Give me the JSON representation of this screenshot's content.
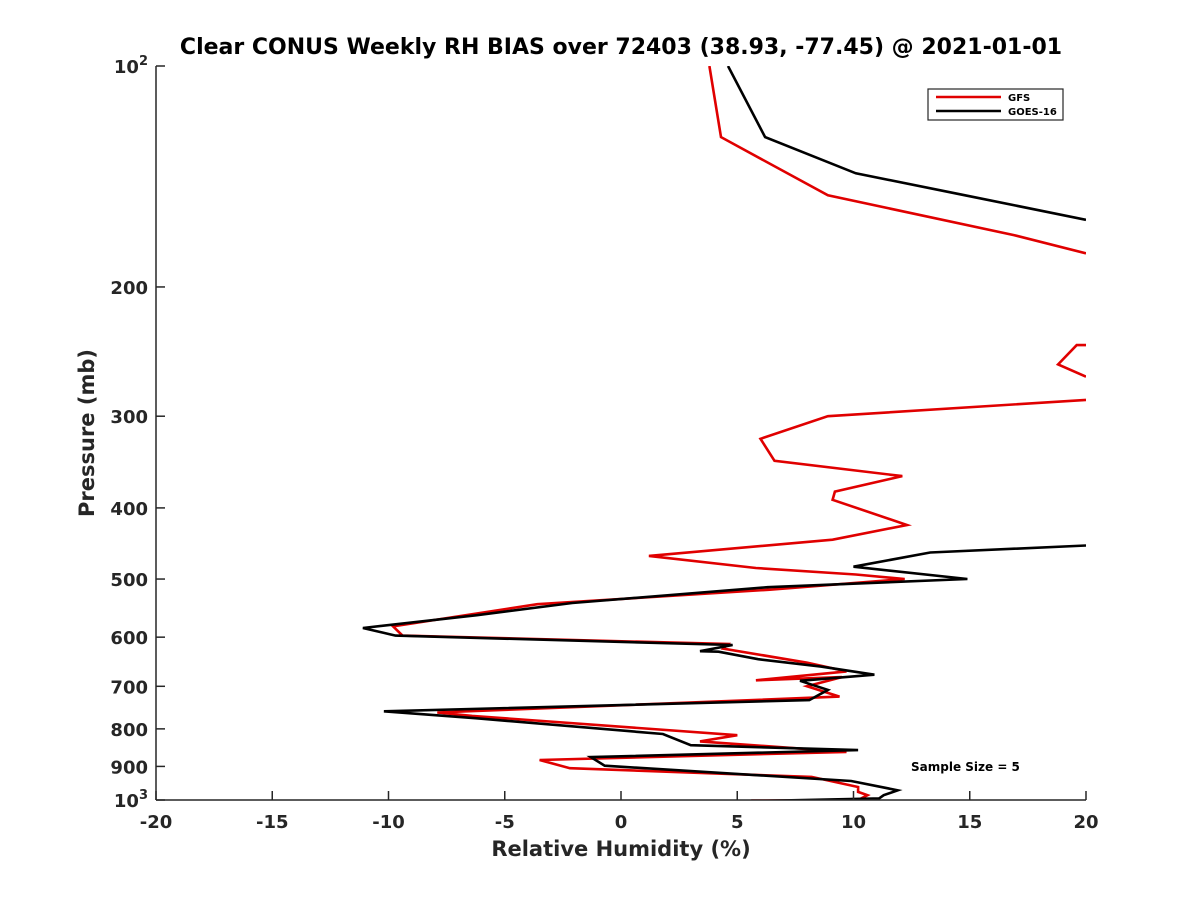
{
  "chart_data": {
    "type": "line",
    "title": "Clear CONUS Weekly RH BIAS over 72403 (38.93, -77.45) @ 2021-01-01",
    "xlabel": "Relative Humidity (%)",
    "ylabel": "Pressure (mb)",
    "xlim": [
      -20,
      20
    ],
    "ylim": [
      100,
      1000
    ],
    "y_scale": "log",
    "y_reversed": true,
    "grid": false,
    "legend_position": "top-right",
    "x_ticks": [
      "-20",
      "-15",
      "-10",
      "-5",
      "0",
      "5",
      "10",
      "15",
      "20"
    ],
    "y_ticks": [
      {
        "value": 100,
        "label": "10",
        "sup": "2"
      },
      {
        "value": 200,
        "label": "200",
        "sup": ""
      },
      {
        "value": 300,
        "label": "300",
        "sup": ""
      },
      {
        "value": 400,
        "label": "400",
        "sup": ""
      },
      {
        "value": 500,
        "label": "500",
        "sup": ""
      },
      {
        "value": 600,
        "label": "600",
        "sup": ""
      },
      {
        "value": 700,
        "label": "700",
        "sup": ""
      },
      {
        "value": 800,
        "label": "800",
        "sup": ""
      },
      {
        "value": 900,
        "label": "900",
        "sup": ""
      },
      {
        "value": 1000,
        "label": "10",
        "sup": "3"
      }
    ],
    "series": [
      {
        "name": "GFS",
        "color": "#e00000",
        "points": [
          [
            3.8,
            100
          ],
          [
            4.3,
            125
          ],
          [
            8.9,
            150
          ],
          [
            16.9,
            170
          ],
          [
            20,
            180
          ],
          [
            null,
            null
          ],
          [
            20,
            240
          ],
          [
            19.6,
            240
          ],
          [
            18.8,
            255
          ],
          [
            20,
            265
          ],
          [
            null,
            null
          ],
          [
            20,
            285
          ],
          [
            8.9,
            300
          ],
          [
            6.0,
            322
          ],
          [
            6.6,
            345
          ],
          [
            12.1,
            362
          ],
          [
            9.2,
            380
          ],
          [
            9.1,
            390
          ],
          [
            12.3,
            422
          ],
          [
            9.1,
            442
          ],
          [
            1.2,
            465
          ],
          [
            5.8,
            483
          ],
          [
            10.1,
            493
          ],
          [
            12.2,
            500
          ],
          [
            6.4,
            517
          ],
          [
            -3.6,
            541
          ],
          [
            -9.8,
            580
          ],
          [
            -9.4,
            597
          ],
          [
            4.6,
            613
          ],
          [
            4.4,
            622
          ],
          [
            8.0,
            650
          ],
          [
            9.7,
            668
          ],
          [
            5.8,
            687
          ],
          [
            9.5,
            680
          ],
          [
            8.0,
            700
          ],
          [
            9.4,
            723
          ],
          [
            -7.9,
            760
          ],
          [
            -6.4,
            768
          ],
          [
            5.0,
            816
          ],
          [
            3.4,
            832
          ],
          [
            9.7,
            860
          ],
          [
            -3.5,
            882
          ],
          [
            -2.2,
            905
          ],
          [
            8.2,
            930
          ],
          [
            10.2,
            960
          ],
          [
            10.2,
            975
          ],
          [
            10.6,
            985
          ],
          [
            10.2,
            1000
          ],
          [
            5.6,
            1002
          ]
        ]
      },
      {
        "name": "GOES-16",
        "color": "#000000",
        "points": [
          [
            4.6,
            100
          ],
          [
            6.2,
            125
          ],
          [
            10.1,
            140
          ],
          [
            14.8,
            150
          ],
          [
            20,
            162
          ],
          [
            null,
            null
          ],
          [
            20,
            450
          ],
          [
            13.3,
            460
          ],
          [
            10.0,
            481
          ],
          [
            14.9,
            500
          ],
          [
            6.3,
            513
          ],
          [
            -2.1,
            539
          ],
          [
            -6.2,
            560
          ],
          [
            -11.1,
            583
          ],
          [
            -9.7,
            597
          ],
          [
            4.8,
            615
          ],
          [
            3.4,
            627
          ],
          [
            4.2,
            628
          ],
          [
            5.9,
            643
          ],
          [
            8.6,
            658
          ],
          [
            10.9,
            675
          ],
          [
            7.7,
            688
          ],
          [
            8.9,
            708
          ],
          [
            8.1,
            731
          ],
          [
            -10.2,
            757
          ],
          [
            -6.2,
            774
          ],
          [
            1.8,
            813
          ],
          [
            3.0,
            842
          ],
          [
            10.2,
            855
          ],
          [
            -1.3,
            874
          ],
          [
            -0.7,
            898
          ],
          [
            9.9,
            942
          ],
          [
            11.9,
            970
          ],
          [
            11.3,
            985
          ],
          [
            11.1,
            995
          ],
          [
            6.0,
            1003
          ]
        ]
      }
    ],
    "annotations": [
      "Sample Size = 5"
    ]
  }
}
